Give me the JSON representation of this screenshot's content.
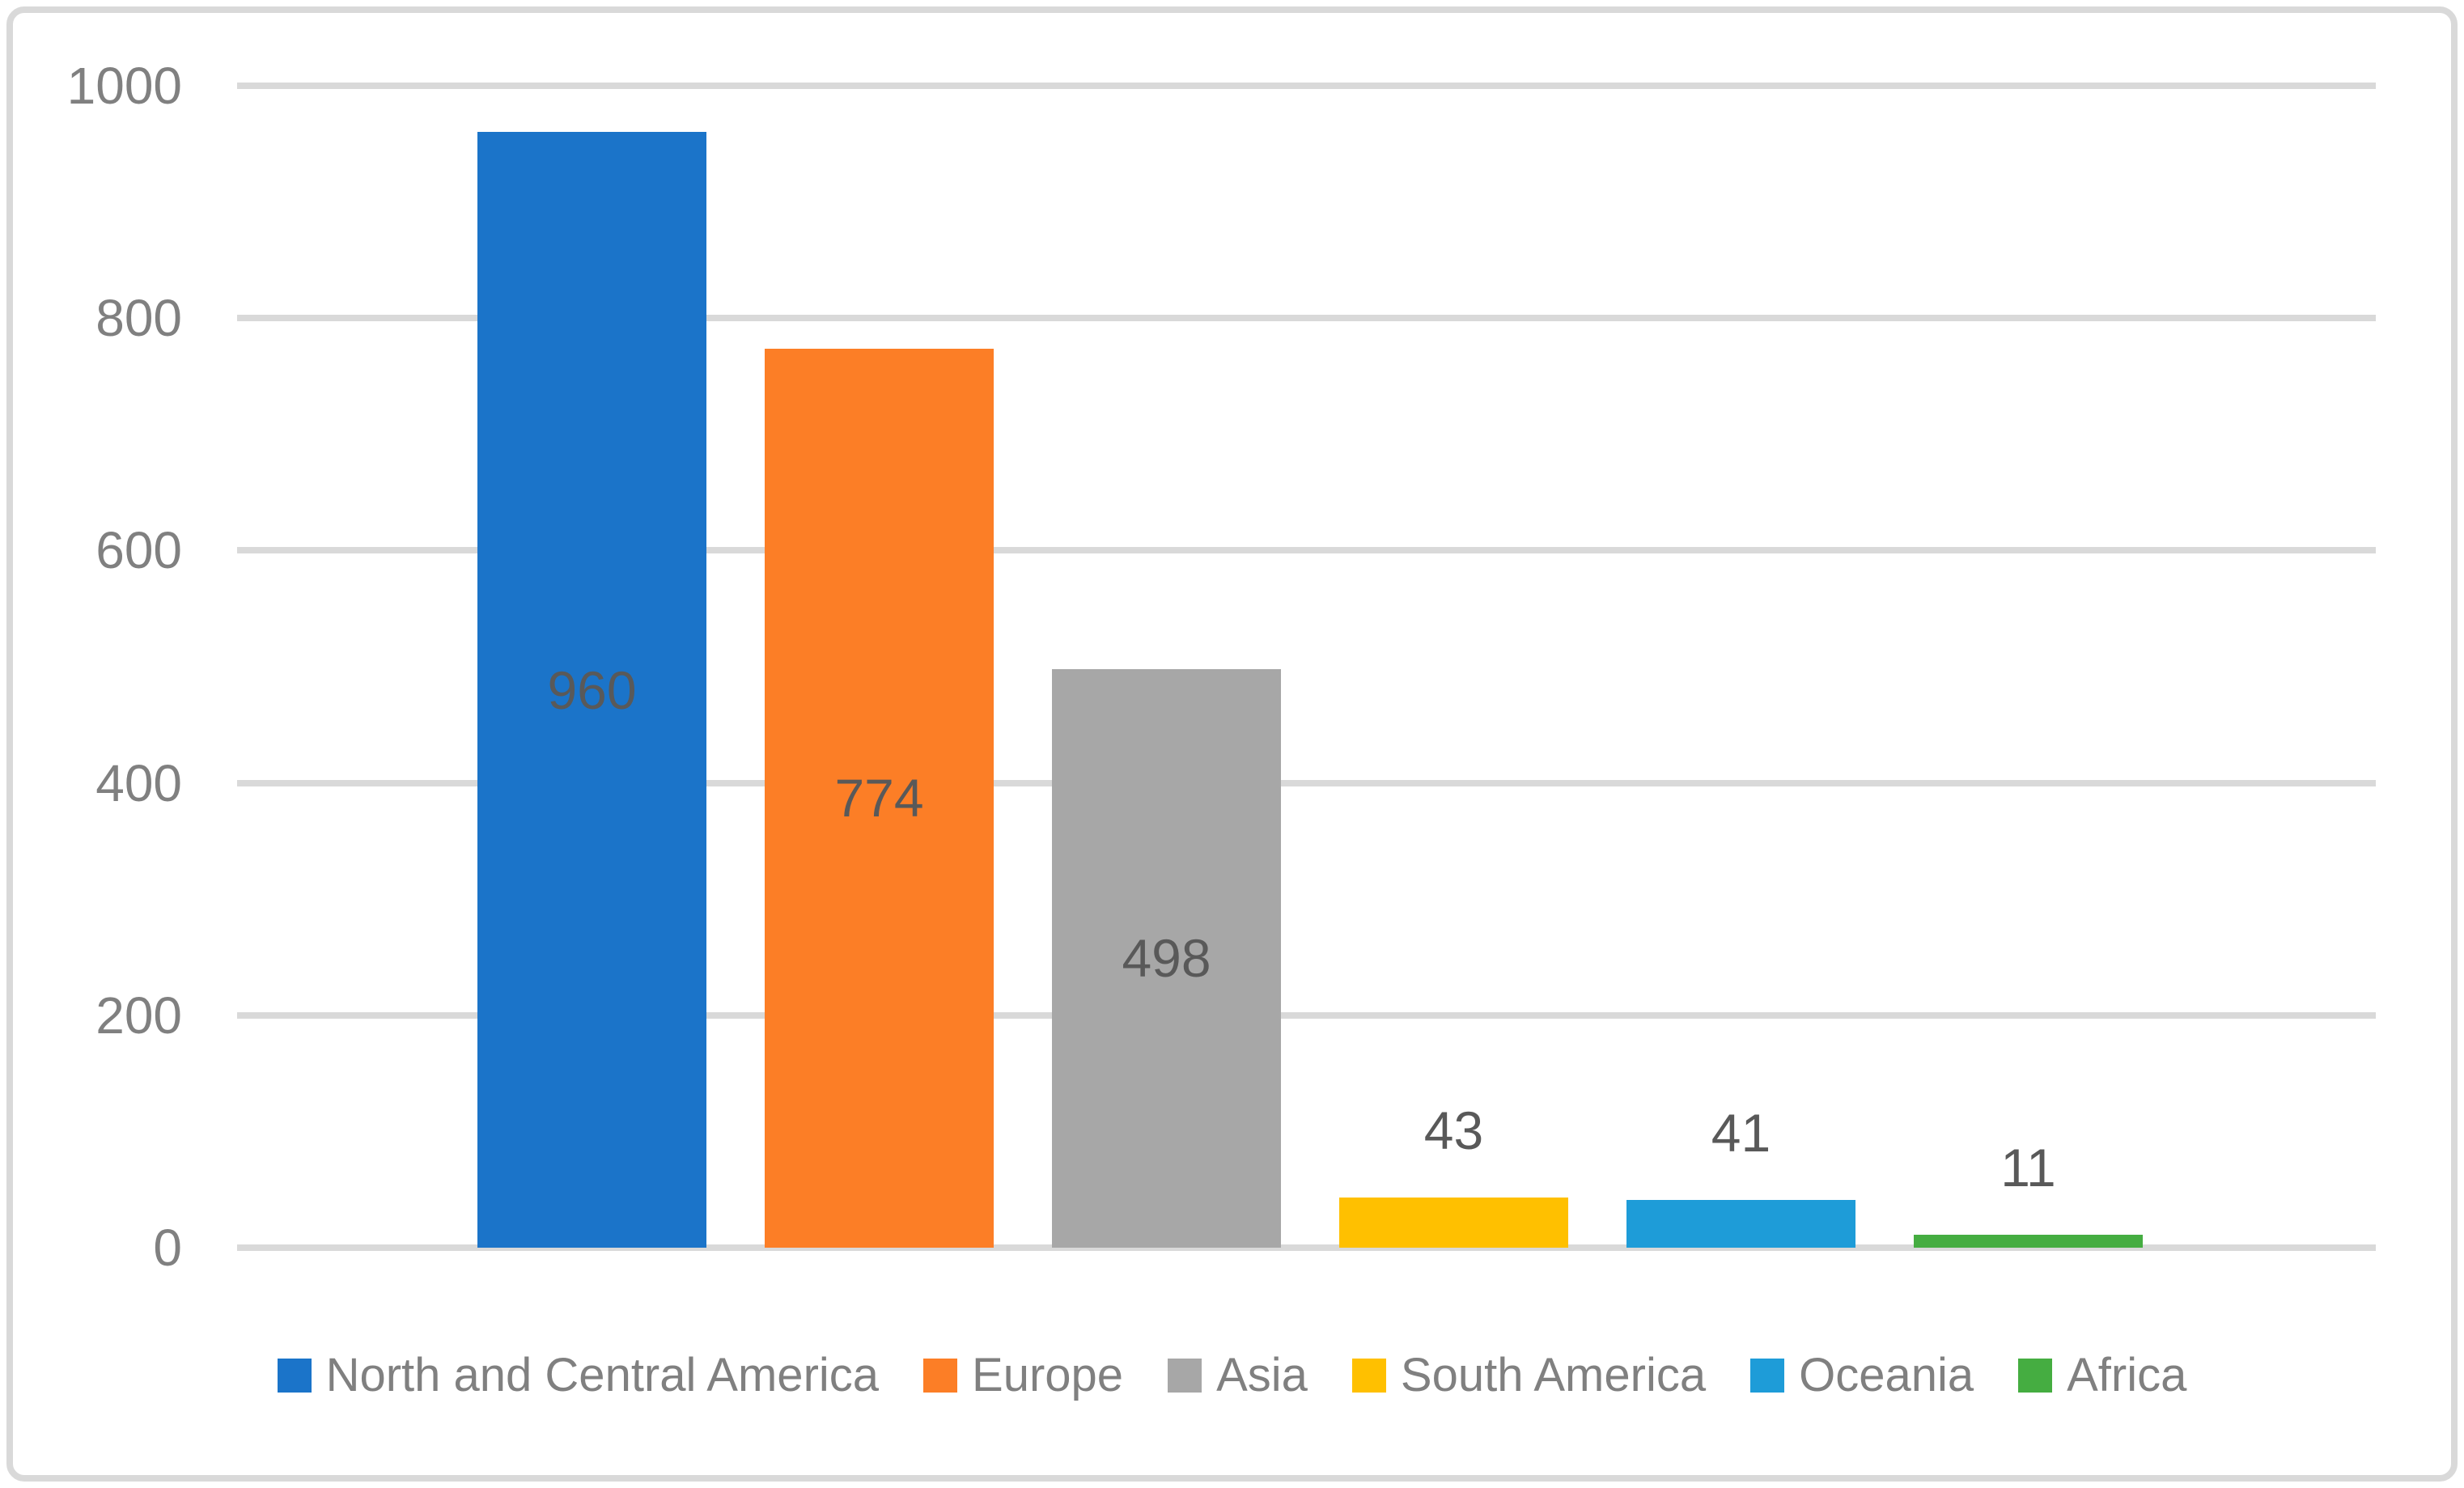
{
  "chart_data": {
    "type": "bar",
    "title": "",
    "xlabel": "",
    "ylabel": "",
    "categories": [
      "North and Central America",
      "Europe",
      "Asia",
      "South America",
      "Oceania",
      "Africa"
    ],
    "values": [
      960,
      774,
      498,
      43,
      41,
      11
    ],
    "data_labels": [
      "960",
      "774",
      "498",
      "43",
      "41",
      "11"
    ],
    "label_placement": [
      "inside-center",
      "inside-center",
      "inside-center",
      "outside-end",
      "outside-end",
      "outside-end"
    ],
    "bar_colors": [
      "#1b74c9",
      "#fc7e26",
      "#a7a7a7",
      "#ffc000",
      "#1e9cd8",
      "#45ad41"
    ],
    "ylim": [
      0,
      1000
    ],
    "yticks": [
      "0",
      "200",
      "400",
      "600",
      "800",
      "1000"
    ],
    "grid": true,
    "legend_position": "bottom"
  },
  "colors": {
    "gridline": "#d9d9d9",
    "axis_line": "#d9d9d9",
    "frame_border": "#d9d9d9",
    "axis_text": "#808080",
    "legend_text": "#808080",
    "data_label_text": "#595959",
    "background": "#ffffff"
  }
}
